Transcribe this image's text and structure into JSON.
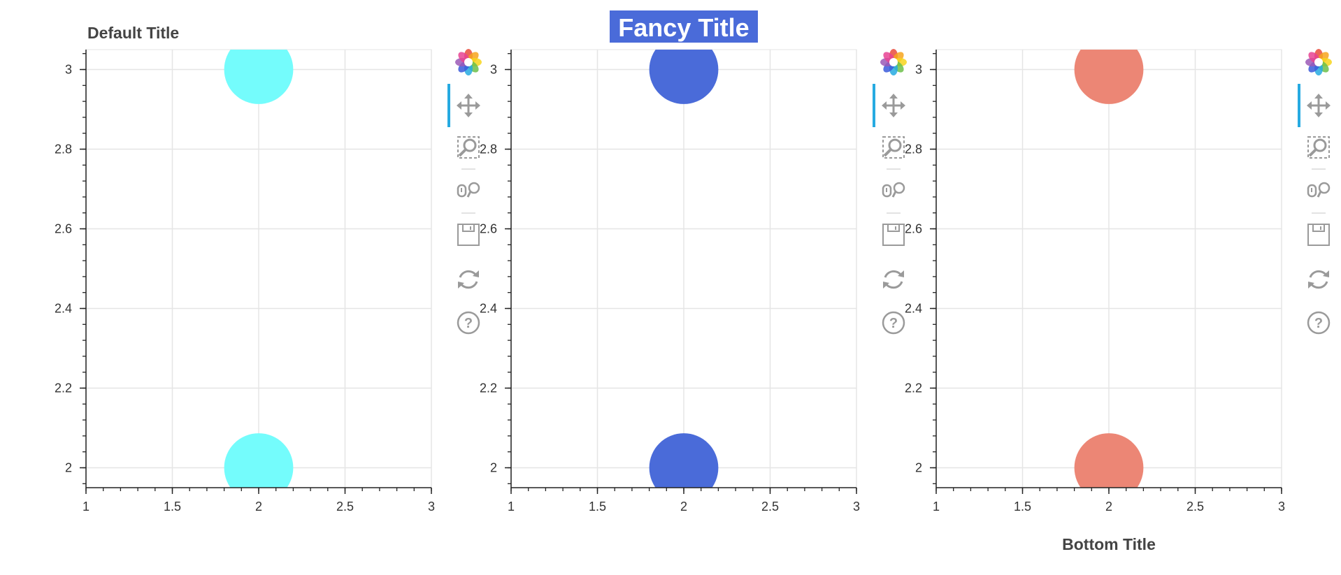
{
  "chart_data": [
    {
      "type": "scatter",
      "title": "Default Title",
      "title_position": "top-left",
      "title_style": "plain",
      "xlim": [
        1,
        3
      ],
      "ylim": [
        1.95,
        3.05
      ],
      "x_ticks": [
        1,
        1.5,
        2,
        2.5,
        3
      ],
      "x_tick_labels": [
        "1",
        "1.5",
        "2",
        "2.5",
        "3"
      ],
      "y_ticks": [
        2,
        2.2,
        2.4,
        2.6,
        2.8,
        3
      ],
      "y_tick_labels": [
        "2",
        "2.2",
        "2.4",
        "2.6",
        "2.8",
        "3"
      ],
      "grid": true,
      "series": [
        {
          "x": [
            2,
            2
          ],
          "y": [
            3,
            2
          ],
          "color": "#74fcfc",
          "marker": "circle"
        }
      ]
    },
    {
      "type": "scatter",
      "title": "Fancy Title",
      "title_position": "top-center",
      "title_style": "white text on blue background",
      "title_colors": {
        "text": "#ffffff",
        "background": "#4a6bd9"
      },
      "xlim": [
        1,
        3
      ],
      "ylim": [
        1.95,
        3.05
      ],
      "x_ticks": [
        1,
        1.5,
        2,
        2.5,
        3
      ],
      "x_tick_labels": [
        "1",
        "1.5",
        "2",
        "2.5",
        "3"
      ],
      "y_ticks": [
        2,
        2.2,
        2.4,
        2.6,
        2.8,
        3
      ],
      "y_tick_labels": [
        "2",
        "2.2",
        "2.4",
        "2.6",
        "2.8",
        "3"
      ],
      "grid": true,
      "series": [
        {
          "x": [
            2,
            2
          ],
          "y": [
            3,
            2
          ],
          "color": "#4a6bd9",
          "marker": "circle"
        }
      ]
    },
    {
      "type": "scatter",
      "title": "Bottom Title",
      "title_position": "bottom-center",
      "title_style": "plain",
      "xlim": [
        1,
        3
      ],
      "ylim": [
        1.95,
        3.05
      ],
      "x_ticks": [
        1,
        1.5,
        2,
        2.5,
        3
      ],
      "x_tick_labels": [
        "1",
        "1.5",
        "2",
        "2.5",
        "3"
      ],
      "y_ticks": [
        2,
        2.2,
        2.4,
        2.6,
        2.8,
        3
      ],
      "y_tick_labels": [
        "2",
        "2.2",
        "2.4",
        "2.6",
        "2.8",
        "3"
      ],
      "grid": true,
      "series": [
        {
          "x": [
            2,
            2
          ],
          "y": [
            3,
            2
          ],
          "color": "#ec8675",
          "marker": "circle"
        }
      ]
    }
  ],
  "toolbar": {
    "tools": [
      "bokeh-logo-icon",
      "pan-icon",
      "box-zoom-icon",
      "wheel-zoom-icon",
      "save-icon",
      "reset-icon",
      "help-icon"
    ],
    "active_tool": "pan-icon"
  },
  "colors": {
    "text": "#333333",
    "title": "#444444",
    "grid": "#e5e5e5",
    "axis": "#222222",
    "toolbar_icon": "#9a9a9a",
    "toolbar_active": "#26aae1"
  }
}
